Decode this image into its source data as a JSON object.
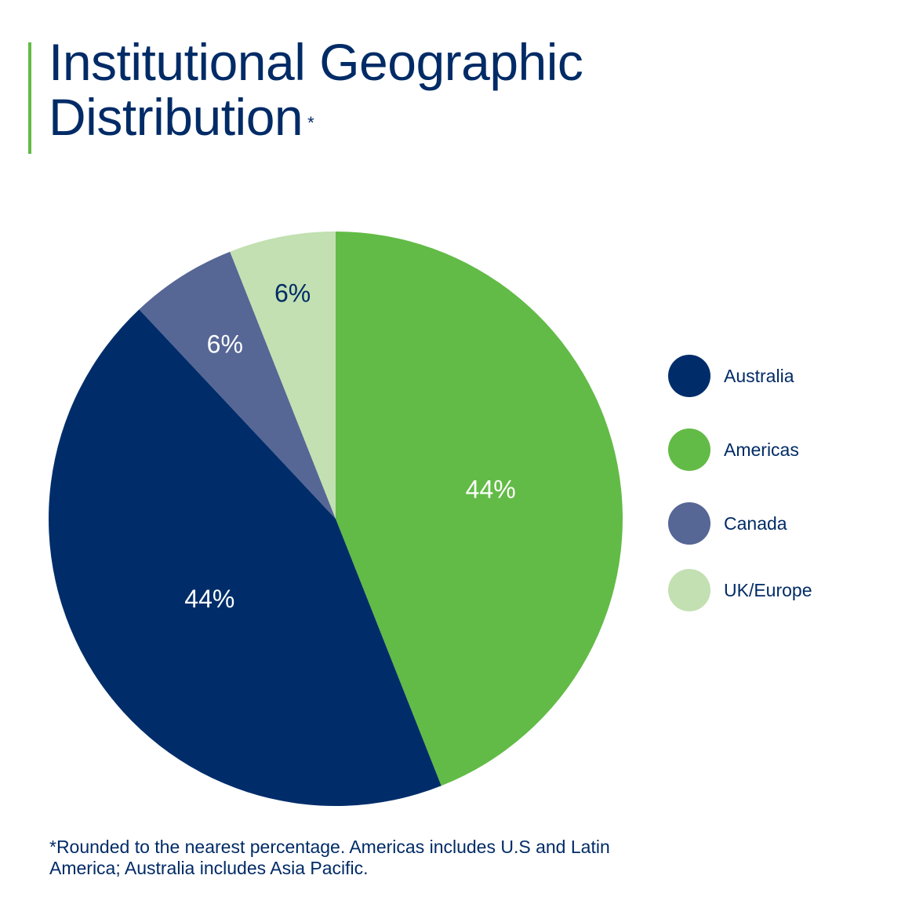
{
  "header": {
    "title_line1": "Institutional Geographic",
    "title_line2": "Distribution",
    "title_marker": "*"
  },
  "colors": {
    "text": "#002b66",
    "accent_bar": "#62bb46"
  },
  "chart_data": {
    "type": "pie",
    "title": "Institutional Geographic Distribution*",
    "start": "top (12 o'clock), clockwise",
    "slices": [
      {
        "name": "Americas",
        "value": 44,
        "label": "44%",
        "color": "#62bb46",
        "label_color": "#ffffff"
      },
      {
        "name": "Australia",
        "value": 44,
        "label": "44%",
        "color": "#002d6a",
        "label_color": "#ffffff"
      },
      {
        "name": "Canada",
        "value": 6,
        "label": "6%",
        "color": "#566695",
        "label_color": "#ffffff"
      },
      {
        "name": "UK/Europe",
        "value": 6,
        "label": "6%",
        "color": "#c2e0b1",
        "label_color": "#002b66"
      }
    ],
    "legend": {
      "placement": "right",
      "items": [
        {
          "label": "Australia",
          "color": "#002d6a"
        },
        {
          "label": "Americas",
          "color": "#62bb46"
        },
        {
          "label": "Canada",
          "color": "#566695"
        },
        {
          "label": "UK/Europe",
          "color": "#c2e0b1"
        }
      ]
    }
  },
  "footnote": {
    "line1": "*Rounded to the nearest percentage. Americas includes U.S and Latin",
    "line2": "America; Australia includes Asia Pacific."
  }
}
